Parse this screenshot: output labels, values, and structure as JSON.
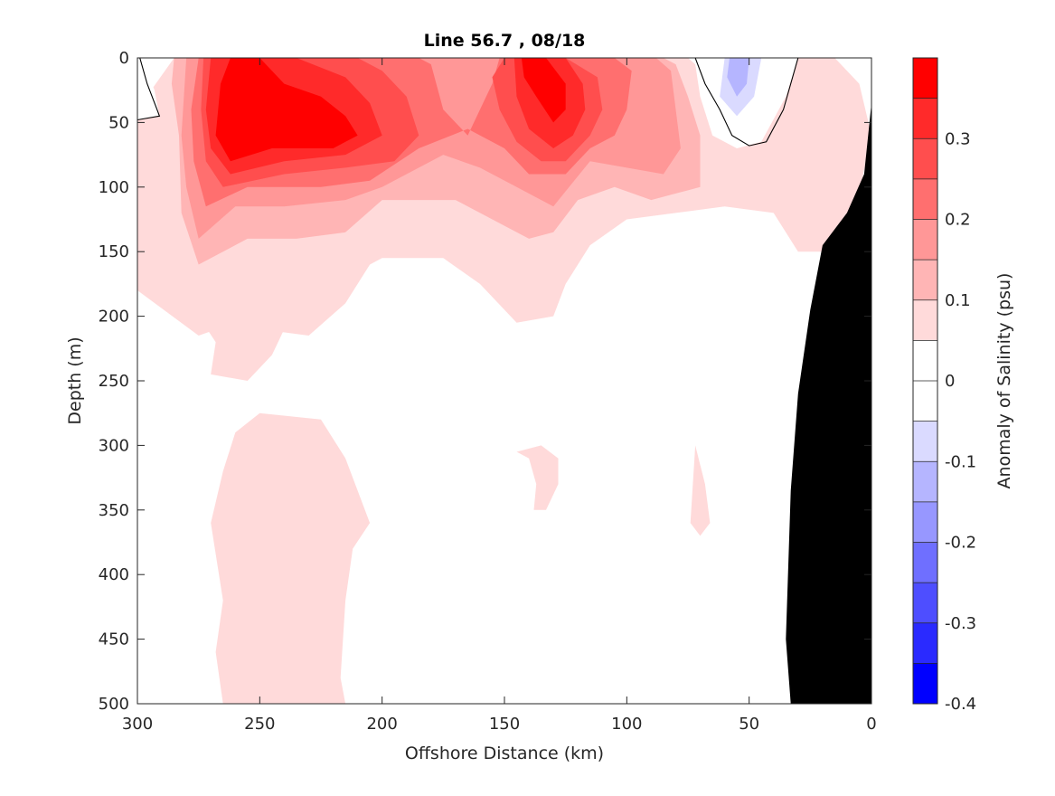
{
  "chart_data": {
    "type": "heatmap",
    "title": "Line 56.7 , 08/18",
    "xlabel": "Offshore Distance (km)",
    "ylabel": "Depth (m)",
    "xlim": [
      300,
      0
    ],
    "ylim": [
      500,
      0
    ],
    "x_ticks": [
      300,
      250,
      200,
      150,
      100,
      50,
      0
    ],
    "y_ticks": [
      0,
      50,
      100,
      150,
      200,
      250,
      300,
      350,
      400,
      450,
      500
    ],
    "colorbar": {
      "label": "Anomaly of Salinity (psu)",
      "range": [
        -0.4,
        0.4
      ],
      "tick_values": [
        0.3,
        0.2,
        0.1,
        0,
        -0.1,
        -0.2,
        -0.3,
        -0.4
      ],
      "tick_labels": [
        "0.3",
        "0.2",
        "0.1",
        "0",
        "-0.1",
        "-0.2",
        "-0.3",
        "-0.4"
      ],
      "levels": [
        {
          "lo": 0.35,
          "hi": 0.4,
          "color": "#ff0000"
        },
        {
          "lo": 0.3,
          "hi": 0.35,
          "color": "#ff2a2a"
        },
        {
          "lo": 0.25,
          "hi": 0.3,
          "color": "#ff4e4e"
        },
        {
          "lo": 0.2,
          "hi": 0.25,
          "color": "#ff6f6f"
        },
        {
          "lo": 0.15,
          "hi": 0.2,
          "color": "#ff9797"
        },
        {
          "lo": 0.1,
          "hi": 0.15,
          "color": "#ffb5b5"
        },
        {
          "lo": 0.05,
          "hi": 0.1,
          "color": "#ffdada"
        },
        {
          "lo": 0.0,
          "hi": 0.05,
          "color": "#ffffff"
        },
        {
          "lo": -0.05,
          "hi": 0.0,
          "color": "#ffffff"
        },
        {
          "lo": -0.1,
          "hi": -0.05,
          "color": "#dadaff"
        },
        {
          "lo": -0.15,
          "hi": -0.1,
          "color": "#b5b5ff"
        },
        {
          "lo": -0.2,
          "hi": -0.15,
          "color": "#9797ff"
        },
        {
          "lo": -0.25,
          "hi": -0.2,
          "color": "#6f6fff"
        },
        {
          "lo": -0.3,
          "hi": -0.25,
          "color": "#4e4eff"
        },
        {
          "lo": -0.35,
          "hi": -0.3,
          "color": "#2a2aff"
        },
        {
          "lo": -0.4,
          "hi": -0.35,
          "color": "#0000ff"
        }
      ]
    },
    "regions": [
      {
        "level": 0.05,
        "points": [
          [
            300,
            40
          ],
          [
            285,
            0
          ],
          [
            265,
            0
          ],
          [
            230,
            5
          ],
          [
            200,
            0
          ],
          [
            175,
            0
          ],
          [
            160,
            5
          ],
          [
            150,
            0
          ],
          [
            130,
            0
          ],
          [
            115,
            0
          ],
          [
            85,
            0
          ],
          [
            75,
            0
          ],
          [
            60,
            25
          ],
          [
            45,
            0
          ],
          [
            20,
            0
          ],
          [
            15,
            0
          ],
          [
            5,
            20
          ],
          [
            0,
            60
          ],
          [
            10,
            150
          ],
          [
            30,
            150
          ],
          [
            40,
            120
          ],
          [
            60,
            115
          ],
          [
            80,
            120
          ],
          [
            100,
            125
          ],
          [
            115,
            145
          ],
          [
            125,
            175
          ],
          [
            130,
            200
          ],
          [
            145,
            205
          ],
          [
            160,
            175
          ],
          [
            175,
            155
          ],
          [
            200,
            155
          ],
          [
            205,
            160
          ],
          [
            215,
            190
          ],
          [
            230,
            215
          ],
          [
            250,
            210
          ],
          [
            260,
            205
          ],
          [
            275,
            215
          ],
          [
            300,
            180
          ]
        ]
      },
      {
        "level": 0.05,
        "points": [
          [
            282,
            180
          ],
          [
            275,
            200
          ],
          [
            268,
            220
          ],
          [
            270,
            245
          ],
          [
            255,
            250
          ],
          [
            245,
            230
          ],
          [
            240,
            210
          ],
          [
            245,
            190
          ],
          [
            262,
            178
          ]
        ]
      },
      {
        "level": 0.05,
        "points": [
          [
            250,
            275
          ],
          [
            225,
            280
          ],
          [
            215,
            310
          ],
          [
            210,
            335
          ],
          [
            205,
            360
          ],
          [
            212,
            380
          ],
          [
            215,
            420
          ],
          [
            217,
            480
          ],
          [
            215,
            500
          ],
          [
            265,
            500
          ],
          [
            268,
            460
          ],
          [
            265,
            420
          ],
          [
            270,
            360
          ],
          [
            265,
            320
          ],
          [
            260,
            290
          ]
        ]
      },
      {
        "level": 0.05,
        "points": [
          [
            145,
            305
          ],
          [
            140,
            310
          ],
          [
            137,
            330
          ],
          [
            138,
            350
          ],
          [
            133,
            350
          ],
          [
            128,
            330
          ],
          [
            128,
            310
          ],
          [
            135,
            300
          ]
        ]
      },
      {
        "level": 0.05,
        "points": [
          [
            72,
            300
          ],
          [
            68,
            330
          ],
          [
            66,
            360
          ],
          [
            70,
            370
          ],
          [
            74,
            360
          ],
          [
            73,
            330
          ]
        ]
      },
      {
        "level": 0.1,
        "points": [
          [
            285,
            0
          ],
          [
            262,
            0
          ],
          [
            225,
            0
          ],
          [
            205,
            0
          ],
          [
            185,
            0
          ],
          [
            170,
            0
          ],
          [
            160,
            0
          ],
          [
            150,
            0
          ],
          [
            130,
            0
          ],
          [
            118,
            0
          ],
          [
            98,
            0
          ],
          [
            85,
            0
          ],
          [
            80,
            5
          ],
          [
            75,
            30
          ],
          [
            70,
            60
          ],
          [
            70,
            100
          ],
          [
            80,
            105
          ],
          [
            90,
            110
          ],
          [
            105,
            100
          ],
          [
            120,
            110
          ],
          [
            130,
            135
          ],
          [
            140,
            140
          ],
          [
            155,
            125
          ],
          [
            170,
            110
          ],
          [
            200,
            110
          ],
          [
            215,
            135
          ],
          [
            235,
            140
          ],
          [
            255,
            140
          ],
          [
            275,
            160
          ],
          [
            282,
            120
          ],
          [
            283,
            60
          ],
          [
            286,
            20
          ]
        ]
      },
      {
        "level": 0.15,
        "points": [
          [
            280,
            0
          ],
          [
            262,
            0
          ],
          [
            225,
            0
          ],
          [
            210,
            0
          ],
          [
            185,
            0
          ],
          [
            172,
            0
          ],
          [
            158,
            0
          ],
          [
            150,
            0
          ],
          [
            130,
            0
          ],
          [
            118,
            0
          ],
          [
            100,
            0
          ],
          [
            88,
            0
          ],
          [
            82,
            10
          ],
          [
            80,
            40
          ],
          [
            78,
            70
          ],
          [
            85,
            90
          ],
          [
            100,
            85
          ],
          [
            115,
            80
          ],
          [
            130,
            115
          ],
          [
            145,
            100
          ],
          [
            160,
            85
          ],
          [
            175,
            75
          ],
          [
            200,
            100
          ],
          [
            215,
            110
          ],
          [
            240,
            115
          ],
          [
            260,
            115
          ],
          [
            275,
            140
          ],
          [
            280,
            100
          ],
          [
            282,
            60
          ]
        ]
      },
      {
        "level": 0.2,
        "points": [
          [
            275,
            0
          ],
          [
            260,
            0
          ],
          [
            225,
            0
          ],
          [
            210,
            0
          ],
          [
            185,
            0
          ],
          [
            180,
            5
          ],
          [
            175,
            40
          ],
          [
            165,
            60
          ],
          [
            155,
            20
          ],
          [
            152,
            0
          ],
          [
            130,
            0
          ],
          [
            115,
            0
          ],
          [
            105,
            0
          ],
          [
            98,
            10
          ],
          [
            100,
            40
          ],
          [
            105,
            60
          ],
          [
            115,
            70
          ],
          [
            125,
            90
          ],
          [
            140,
            90
          ],
          [
            150,
            70
          ],
          [
            165,
            55
          ],
          [
            185,
            70
          ],
          [
            205,
            95
          ],
          [
            225,
            100
          ],
          [
            255,
            100
          ],
          [
            272,
            115
          ],
          [
            277,
            80
          ],
          [
            278,
            40
          ]
        ]
      },
      {
        "level": 0.25,
        "points": [
          [
            273,
            0
          ],
          [
            255,
            0
          ],
          [
            230,
            0
          ],
          [
            210,
            0
          ],
          [
            200,
            10
          ],
          [
            190,
            30
          ],
          [
            185,
            60
          ],
          [
            195,
            80
          ],
          [
            215,
            85
          ],
          [
            240,
            90
          ],
          [
            265,
            100
          ],
          [
            272,
            80
          ],
          [
            274,
            40
          ]
        ]
      },
      {
        "level": 0.25,
        "points": [
          [
            150,
            0
          ],
          [
            135,
            0
          ],
          [
            125,
            0
          ],
          [
            112,
            15
          ],
          [
            110,
            40
          ],
          [
            115,
            60
          ],
          [
            125,
            80
          ],
          [
            135,
            80
          ],
          [
            145,
            65
          ],
          [
            152,
            40
          ],
          [
            155,
            15
          ]
        ]
      },
      {
        "level": 0.3,
        "points": [
          [
            270,
            0
          ],
          [
            255,
            0
          ],
          [
            235,
            0
          ],
          [
            215,
            15
          ],
          [
            205,
            35
          ],
          [
            200,
            60
          ],
          [
            215,
            75
          ],
          [
            240,
            80
          ],
          [
            262,
            90
          ],
          [
            270,
            70
          ],
          [
            272,
            40
          ]
        ]
      },
      {
        "level": 0.3,
        "points": [
          [
            146,
            0
          ],
          [
            135,
            0
          ],
          [
            125,
            0
          ],
          [
            118,
            20
          ],
          [
            117,
            40
          ],
          [
            122,
            60
          ],
          [
            130,
            70
          ],
          [
            140,
            55
          ],
          [
            145,
            30
          ]
        ]
      },
      {
        "level": 0.35,
        "points": [
          [
            262,
            0
          ],
          [
            250,
            0
          ],
          [
            240,
            20
          ],
          [
            225,
            30
          ],
          [
            215,
            45
          ],
          [
            210,
            60
          ],
          [
            220,
            70
          ],
          [
            245,
            70
          ],
          [
            262,
            80
          ],
          [
            268,
            60
          ],
          [
            266,
            20
          ]
        ]
      },
      {
        "level": 0.35,
        "points": [
          [
            143,
            0
          ],
          [
            133,
            0
          ],
          [
            125,
            20
          ],
          [
            125,
            40
          ],
          [
            130,
            50
          ],
          [
            137,
            30
          ],
          [
            142,
            15
          ]
        ]
      },
      {
        "level": 0.0,
        "points": [
          [
            60,
            0
          ],
          [
            30,
            0
          ],
          [
            35,
            30
          ],
          [
            45,
            65
          ],
          [
            55,
            70
          ],
          [
            65,
            60
          ],
          [
            70,
            30
          ],
          [
            72,
            5
          ]
        ]
      },
      {
        "level": -0.05,
        "points": [
          [
            63,
            0
          ],
          [
            40,
            0
          ],
          [
            45,
            30
          ],
          [
            55,
            55
          ],
          [
            65,
            40
          ]
        ]
      },
      {
        "level": -0.1,
        "points": [
          [
            60,
            0
          ],
          [
            45,
            0
          ],
          [
            48,
            30
          ],
          [
            55,
            45
          ],
          [
            62,
            30
          ]
        ]
      },
      {
        "level": -0.15,
        "points": [
          [
            58,
            0
          ],
          [
            50,
            0
          ],
          [
            51,
            20
          ],
          [
            55,
            30
          ],
          [
            59,
            15
          ]
        ]
      },
      {
        "level": 0.0,
        "points": [
          [
            300,
            0
          ],
          [
            298,
            0
          ],
          [
            296,
            10
          ],
          [
            293,
            25
          ],
          [
            291,
            45
          ],
          [
            300,
            48
          ]
        ]
      }
    ],
    "contour_lines": [
      [
        [
          299,
          0
        ],
        [
          296,
          20
        ],
        [
          292,
          40
        ],
        [
          291,
          45
        ],
        [
          300,
          48
        ]
      ],
      [
        [
          72,
          0
        ],
        [
          68,
          20
        ],
        [
          62,
          40
        ],
        [
          57,
          60
        ],
        [
          50,
          68
        ],
        [
          43,
          65
        ],
        [
          36,
          40
        ],
        [
          30,
          0
        ]
      ]
    ],
    "bathymetry": {
      "points": [
        [
          0,
          35
        ],
        [
          3,
          90
        ],
        [
          10,
          120
        ],
        [
          20,
          145
        ],
        [
          25,
          195
        ],
        [
          30,
          260
        ],
        [
          33,
          335
        ],
        [
          35,
          450
        ],
        [
          33,
          500
        ],
        [
          0,
          500
        ]
      ],
      "color": "#000000"
    }
  }
}
